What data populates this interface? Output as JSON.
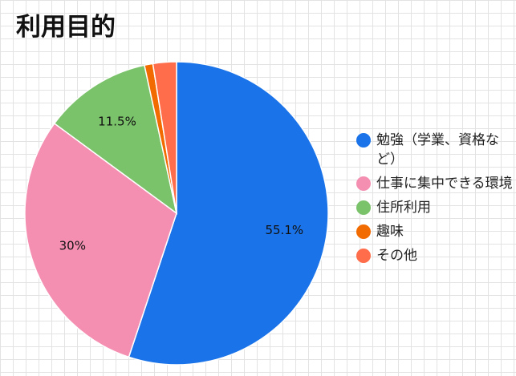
{
  "chart_data": {
    "type": "pie",
    "title": "利用目的",
    "slices": [
      {
        "label": "勉強（学業、資格など）",
        "value": 55.1,
        "data_label": "55.1%",
        "color": "#1a73e8"
      },
      {
        "label": "仕事に集中できる環境",
        "value": 30,
        "data_label": "30%",
        "color": "#f48fb1"
      },
      {
        "label": "住所利用",
        "value": 11.5,
        "data_label": "11.5%",
        "color": "#7bc36b"
      },
      {
        "label": "趣味",
        "value": 0.9,
        "data_label": "",
        "color": "#f26b00"
      },
      {
        "label": "その他",
        "value": 2.5,
        "data_label": "",
        "color": "#ff6d4a"
      }
    ],
    "start_angle_deg": 0,
    "direction": "clockwise",
    "legend_position": "right"
  }
}
